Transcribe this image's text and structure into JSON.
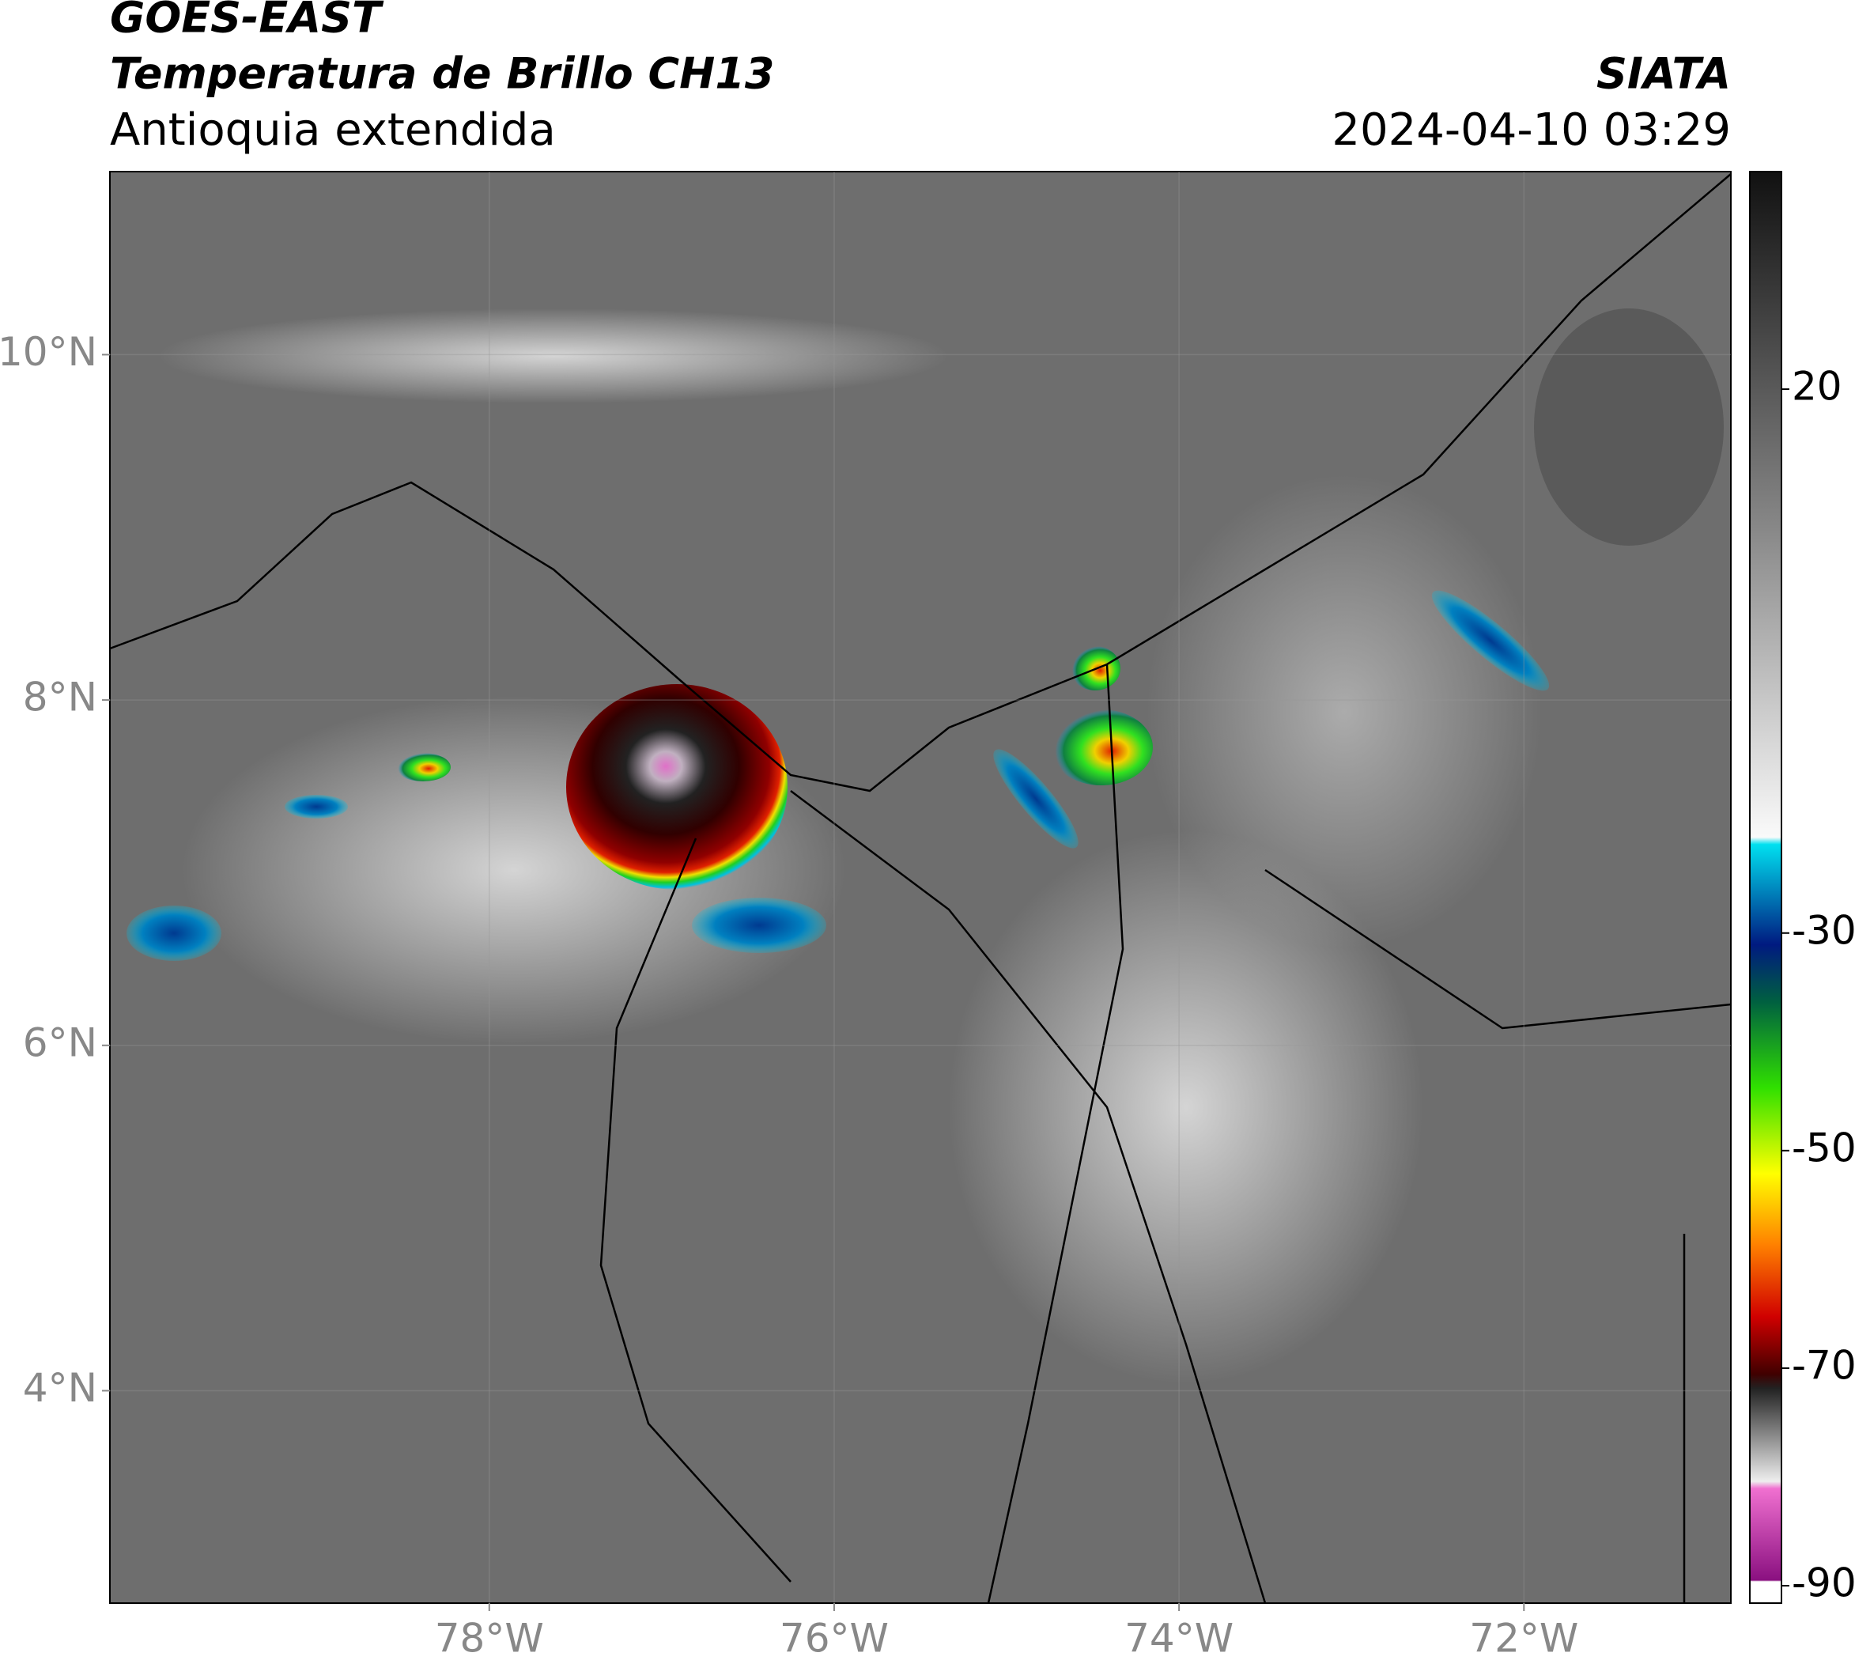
{
  "header": {
    "satellite": "GOES-EAST",
    "product": "Temperatura de Brillo CH13",
    "region": "Antioquia extendida",
    "agency": "SIATA",
    "datetime": "2024-04-10 03:29"
  },
  "map": {
    "xlim": [
      -80.2,
      -70.8
    ],
    "ylim": [
      2.77,
      11.06
    ],
    "xticks": [
      {
        "value": -78,
        "label": "78°W"
      },
      {
        "value": -76,
        "label": "76°W"
      },
      {
        "value": -74,
        "label": "74°W"
      },
      {
        "value": -72,
        "label": "72°W"
      }
    ],
    "yticks": [
      {
        "value": 4,
        "label": "4°N"
      },
      {
        "value": 6,
        "label": "6°N"
      },
      {
        "value": 8,
        "label": "8°N"
      },
      {
        "value": 10,
        "label": "10°N"
      }
    ],
    "grid": true
  },
  "colorbar": {
    "lim": [
      -91.6,
      40
    ],
    "ticks": [
      20,
      -30,
      -50,
      -70,
      -90
    ]
  }
}
